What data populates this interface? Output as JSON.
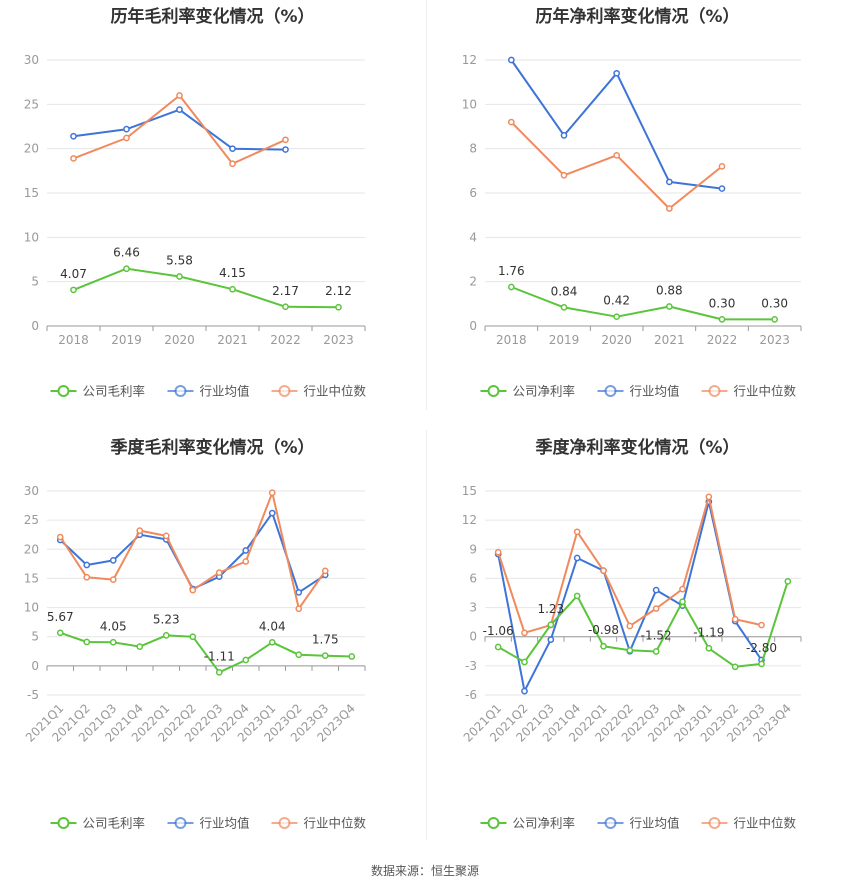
{
  "source_text": "数据来源：恒生聚源",
  "colors": {
    "company": "#5ac53b",
    "avg": "#3e74d8",
    "median": "#f08a5d",
    "grid": "#e6e6e6",
    "axis": "#999999",
    "tick": "#999999",
    "label": "#333333"
  },
  "chart_data": [
    {
      "type": "line",
      "title": "历年毛利率变化情况（%）",
      "categories": [
        "2018",
        "2019",
        "2020",
        "2021",
        "2022",
        "2023"
      ],
      "ylim": [
        0,
        30
      ],
      "yticks": [
        0,
        5,
        10,
        15,
        20,
        25,
        30
      ],
      "rotate_x_labels": false,
      "series": [
        {
          "name": "公司毛利率",
          "color_key": "company",
          "values": [
            4.07,
            6.46,
            5.58,
            4.15,
            2.17,
            2.12
          ],
          "labels": [
            "4.07",
            "6.46",
            "5.58",
            "4.15",
            "2.17",
            "2.12"
          ]
        },
        {
          "name": "行业均值",
          "color_key": "avg",
          "values": [
            21.4,
            22.2,
            24.4,
            20.0,
            19.9,
            null
          ]
        },
        {
          "name": "行业中位数",
          "color_key": "median",
          "values": [
            18.9,
            21.2,
            26.0,
            18.3,
            21.0,
            null
          ]
        }
      ],
      "legend": [
        "公司毛利率",
        "行业均值",
        "行业中位数"
      ],
      "legend_position": "bottom"
    },
    {
      "type": "line",
      "title": "历年净利率变化情况（%）",
      "categories": [
        "2018",
        "2019",
        "2020",
        "2021",
        "2022",
        "2023"
      ],
      "ylim": [
        0,
        12
      ],
      "yticks": [
        0,
        2,
        4,
        6,
        8,
        10,
        12
      ],
      "rotate_x_labels": false,
      "series": [
        {
          "name": "公司净利率",
          "color_key": "company",
          "values": [
            1.76,
            0.84,
            0.42,
            0.88,
            0.3,
            0.3
          ],
          "labels": [
            "1.76",
            "0.84",
            "0.42",
            "0.88",
            "0.30",
            "0.30"
          ]
        },
        {
          "name": "行业均值",
          "color_key": "avg",
          "values": [
            12.0,
            8.6,
            11.4,
            6.5,
            6.2,
            null
          ]
        },
        {
          "name": "行业中位数",
          "color_key": "median",
          "values": [
            9.2,
            6.8,
            7.7,
            5.3,
            7.2,
            null
          ]
        }
      ],
      "legend": [
        "公司净利率",
        "行业均值",
        "行业中位数"
      ],
      "legend_position": "bottom"
    },
    {
      "type": "line",
      "title": "季度毛利率变化情况（%）",
      "categories": [
        "2021Q1",
        "2021Q2",
        "2021Q3",
        "2021Q4",
        "2022Q1",
        "2022Q2",
        "2022Q3",
        "2022Q4",
        "2023Q1",
        "2023Q2",
        "2023Q3",
        "2023Q4"
      ],
      "ylim": [
        -5,
        30
      ],
      "yticks": [
        -5,
        0,
        5,
        10,
        15,
        20,
        25,
        30
      ],
      "rotate_x_labels": true,
      "series": [
        {
          "name": "公司毛利率",
          "color_key": "company",
          "values": [
            5.67,
            4.1,
            4.05,
            3.3,
            5.23,
            5.0,
            -1.11,
            1.0,
            4.04,
            1.9,
            1.75,
            1.6
          ],
          "labels": [
            "5.67",
            null,
            "4.05",
            null,
            "5.23",
            null,
            "-1.11",
            null,
            "4.04",
            null,
            "1.75",
            null
          ]
        },
        {
          "name": "行业均值",
          "color_key": "avg",
          "values": [
            21.6,
            17.3,
            18.1,
            22.5,
            21.7,
            13.2,
            15.3,
            19.8,
            26.2,
            12.6,
            15.6,
            null
          ]
        },
        {
          "name": "行业中位数",
          "color_key": "median",
          "values": [
            22.1,
            15.2,
            14.8,
            23.2,
            22.3,
            13.0,
            16.0,
            17.9,
            29.7,
            9.8,
            16.3,
            null
          ]
        }
      ],
      "legend": [
        "公司毛利率",
        "行业均值",
        "行业中位数"
      ],
      "legend_position": "bottom"
    },
    {
      "type": "line",
      "title": "季度净利率变化情况（%）",
      "categories": [
        "2021Q1",
        "2021Q2",
        "2021Q3",
        "2021Q4",
        "2022Q1",
        "2022Q2",
        "2022Q3",
        "2022Q4",
        "2023Q1",
        "2023Q2",
        "2023Q3",
        "2023Q4"
      ],
      "ylim": [
        -6,
        15
      ],
      "yticks": [
        -6,
        -3,
        0,
        3,
        6,
        9,
        12,
        15
      ],
      "rotate_x_labels": true,
      "series": [
        {
          "name": "公司净利率",
          "color_key": "company",
          "values": [
            -1.06,
            -2.6,
            1.23,
            4.2,
            -0.98,
            -1.4,
            -1.52,
            3.6,
            -1.19,
            -3.1,
            -2.8,
            5.7
          ],
          "labels": [
            "-1.06",
            null,
            "1.23",
            null,
            "-0.98",
            null,
            "-1.52",
            null,
            "-1.19",
            null,
            "-2.80",
            null
          ]
        },
        {
          "name": "行业均值",
          "color_key": "avg",
          "values": [
            8.5,
            -5.6,
            -0.3,
            8.1,
            6.8,
            -1.5,
            4.8,
            3.2,
            13.9,
            1.6,
            -2.4,
            null
          ]
        },
        {
          "name": "行业中位数",
          "color_key": "median",
          "values": [
            8.7,
            0.4,
            1.2,
            10.8,
            6.8,
            1.1,
            2.9,
            4.9,
            14.4,
            1.8,
            1.2,
            null
          ]
        }
      ],
      "legend": [
        "公司净利率",
        "行业均值",
        "行业中位数"
      ],
      "legend_position": "bottom"
    }
  ]
}
